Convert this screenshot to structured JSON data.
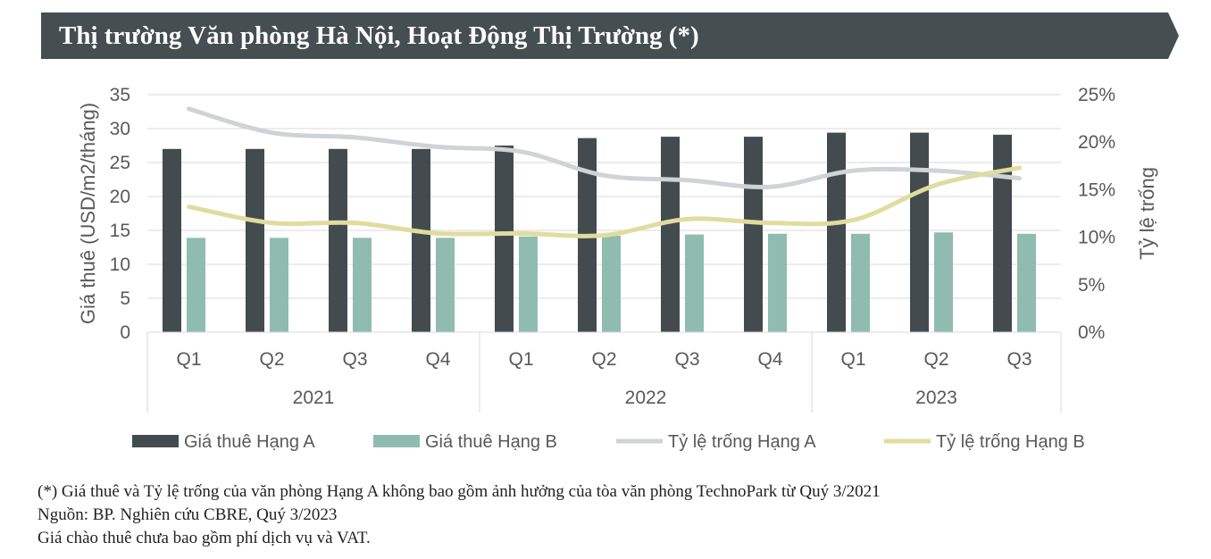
{
  "header": {
    "title": "Thị trường Văn phòng Hà Nội, Hoạt Động Thị Trường (*)"
  },
  "colors": {
    "banner": "#454e51",
    "grade_a_rent": "#434b4e",
    "grade_b_rent": "#8fbcaf",
    "grade_a_vacancy": "#d0d3d5",
    "grade_b_vacancy": "#e0dc9f",
    "text": "#595959",
    "grid": "#d9d9d9"
  },
  "chart_data": {
    "type": "bar",
    "ylabel": "Giá thuê (USD/m2/tháng)",
    "y2label": "Tỷ lệ trống",
    "ylim": [
      0,
      35
    ],
    "y2lim": [
      0,
      0.25
    ],
    "yticks": [
      "0",
      "5",
      "10",
      "15",
      "20",
      "25",
      "30",
      "35"
    ],
    "y2ticks": [
      "0%",
      "5%",
      "10%",
      "15%",
      "20%",
      "25%"
    ],
    "categories": [
      "Q1",
      "Q2",
      "Q3",
      "Q4",
      "Q1",
      "Q2",
      "Q3",
      "Q4",
      "Q1",
      "Q2",
      "Q3"
    ],
    "groups": [
      {
        "label": "2021",
        "count": 4
      },
      {
        "label": "2022",
        "count": 4
      },
      {
        "label": "2023",
        "count": 3
      }
    ],
    "grid": "horizontal",
    "legend_position": "bottom",
    "series": [
      {
        "name": "Giá thuê Hạng A",
        "kind": "bar",
        "axis": "left",
        "values": [
          27.0,
          27.0,
          27.0,
          27.0,
          27.5,
          28.6,
          28.8,
          28.8,
          29.4,
          29.4,
          29.1
        ]
      },
      {
        "name": "Giá thuê Hạng B",
        "kind": "bar",
        "axis": "left",
        "values": [
          13.9,
          13.9,
          13.9,
          13.9,
          14.1,
          14.2,
          14.4,
          14.5,
          14.5,
          14.7,
          14.5
        ]
      },
      {
        "name": "Tỷ lệ trống Hạng A",
        "kind": "line",
        "axis": "right",
        "values": [
          0.235,
          0.21,
          0.205,
          0.195,
          0.19,
          0.165,
          0.16,
          0.153,
          0.17,
          0.17,
          0.162
        ]
      },
      {
        "name": "Tỷ lệ trống Hạng B",
        "kind": "line",
        "axis": "right",
        "values": [
          0.132,
          0.115,
          0.115,
          0.104,
          0.104,
          0.102,
          0.119,
          0.115,
          0.118,
          0.155,
          0.173
        ]
      }
    ]
  },
  "notes": {
    "line1": "(*) Giá thuê và Tỷ lệ trống của văn phòng Hạng A không bao gồm ảnh hưởng của tòa văn phòng TechnoPark từ Quý 3/2021",
    "line2": "Nguồn: BP. Nghiên cứu CBRE, Quý 3/2023",
    "line3": "Giá chào thuê chưa bao gồm phí dịch vụ và VAT."
  }
}
